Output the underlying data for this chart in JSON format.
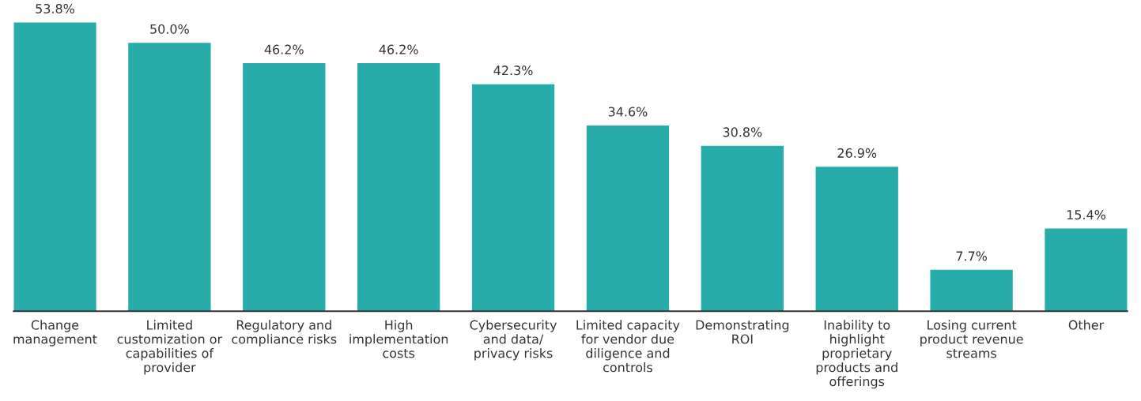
{
  "chart_data": {
    "type": "bar",
    "categories": [
      "Change\nmanagement",
      "Limited\ncustomization or\ncapabilities of\nprovider",
      "Regulatory and\ncompliance risks",
      "High\nimplementation\ncosts",
      "Cybersecurity\nand data/\nprivacy risks",
      "Limited capacity\nfor vendor due\ndiligence and\ncontrols",
      "Demonstrating\nROI",
      "Inability to\nhighlight\nproprietary\nproducts and\nofferings",
      "Losing current\nproduct revenue\nstreams",
      "Other"
    ],
    "values": [
      53.8,
      50.0,
      46.2,
      46.2,
      42.3,
      34.6,
      30.8,
      26.9,
      7.7,
      15.4
    ],
    "value_labels": [
      "53.8%",
      "50.0%",
      "46.2%",
      "46.2%",
      "42.3%",
      "34.6%",
      "30.8%",
      "26.9%",
      "7.7%",
      "15.4%"
    ],
    "color": "#27aca9",
    "grid": false,
    "legend": false
  }
}
